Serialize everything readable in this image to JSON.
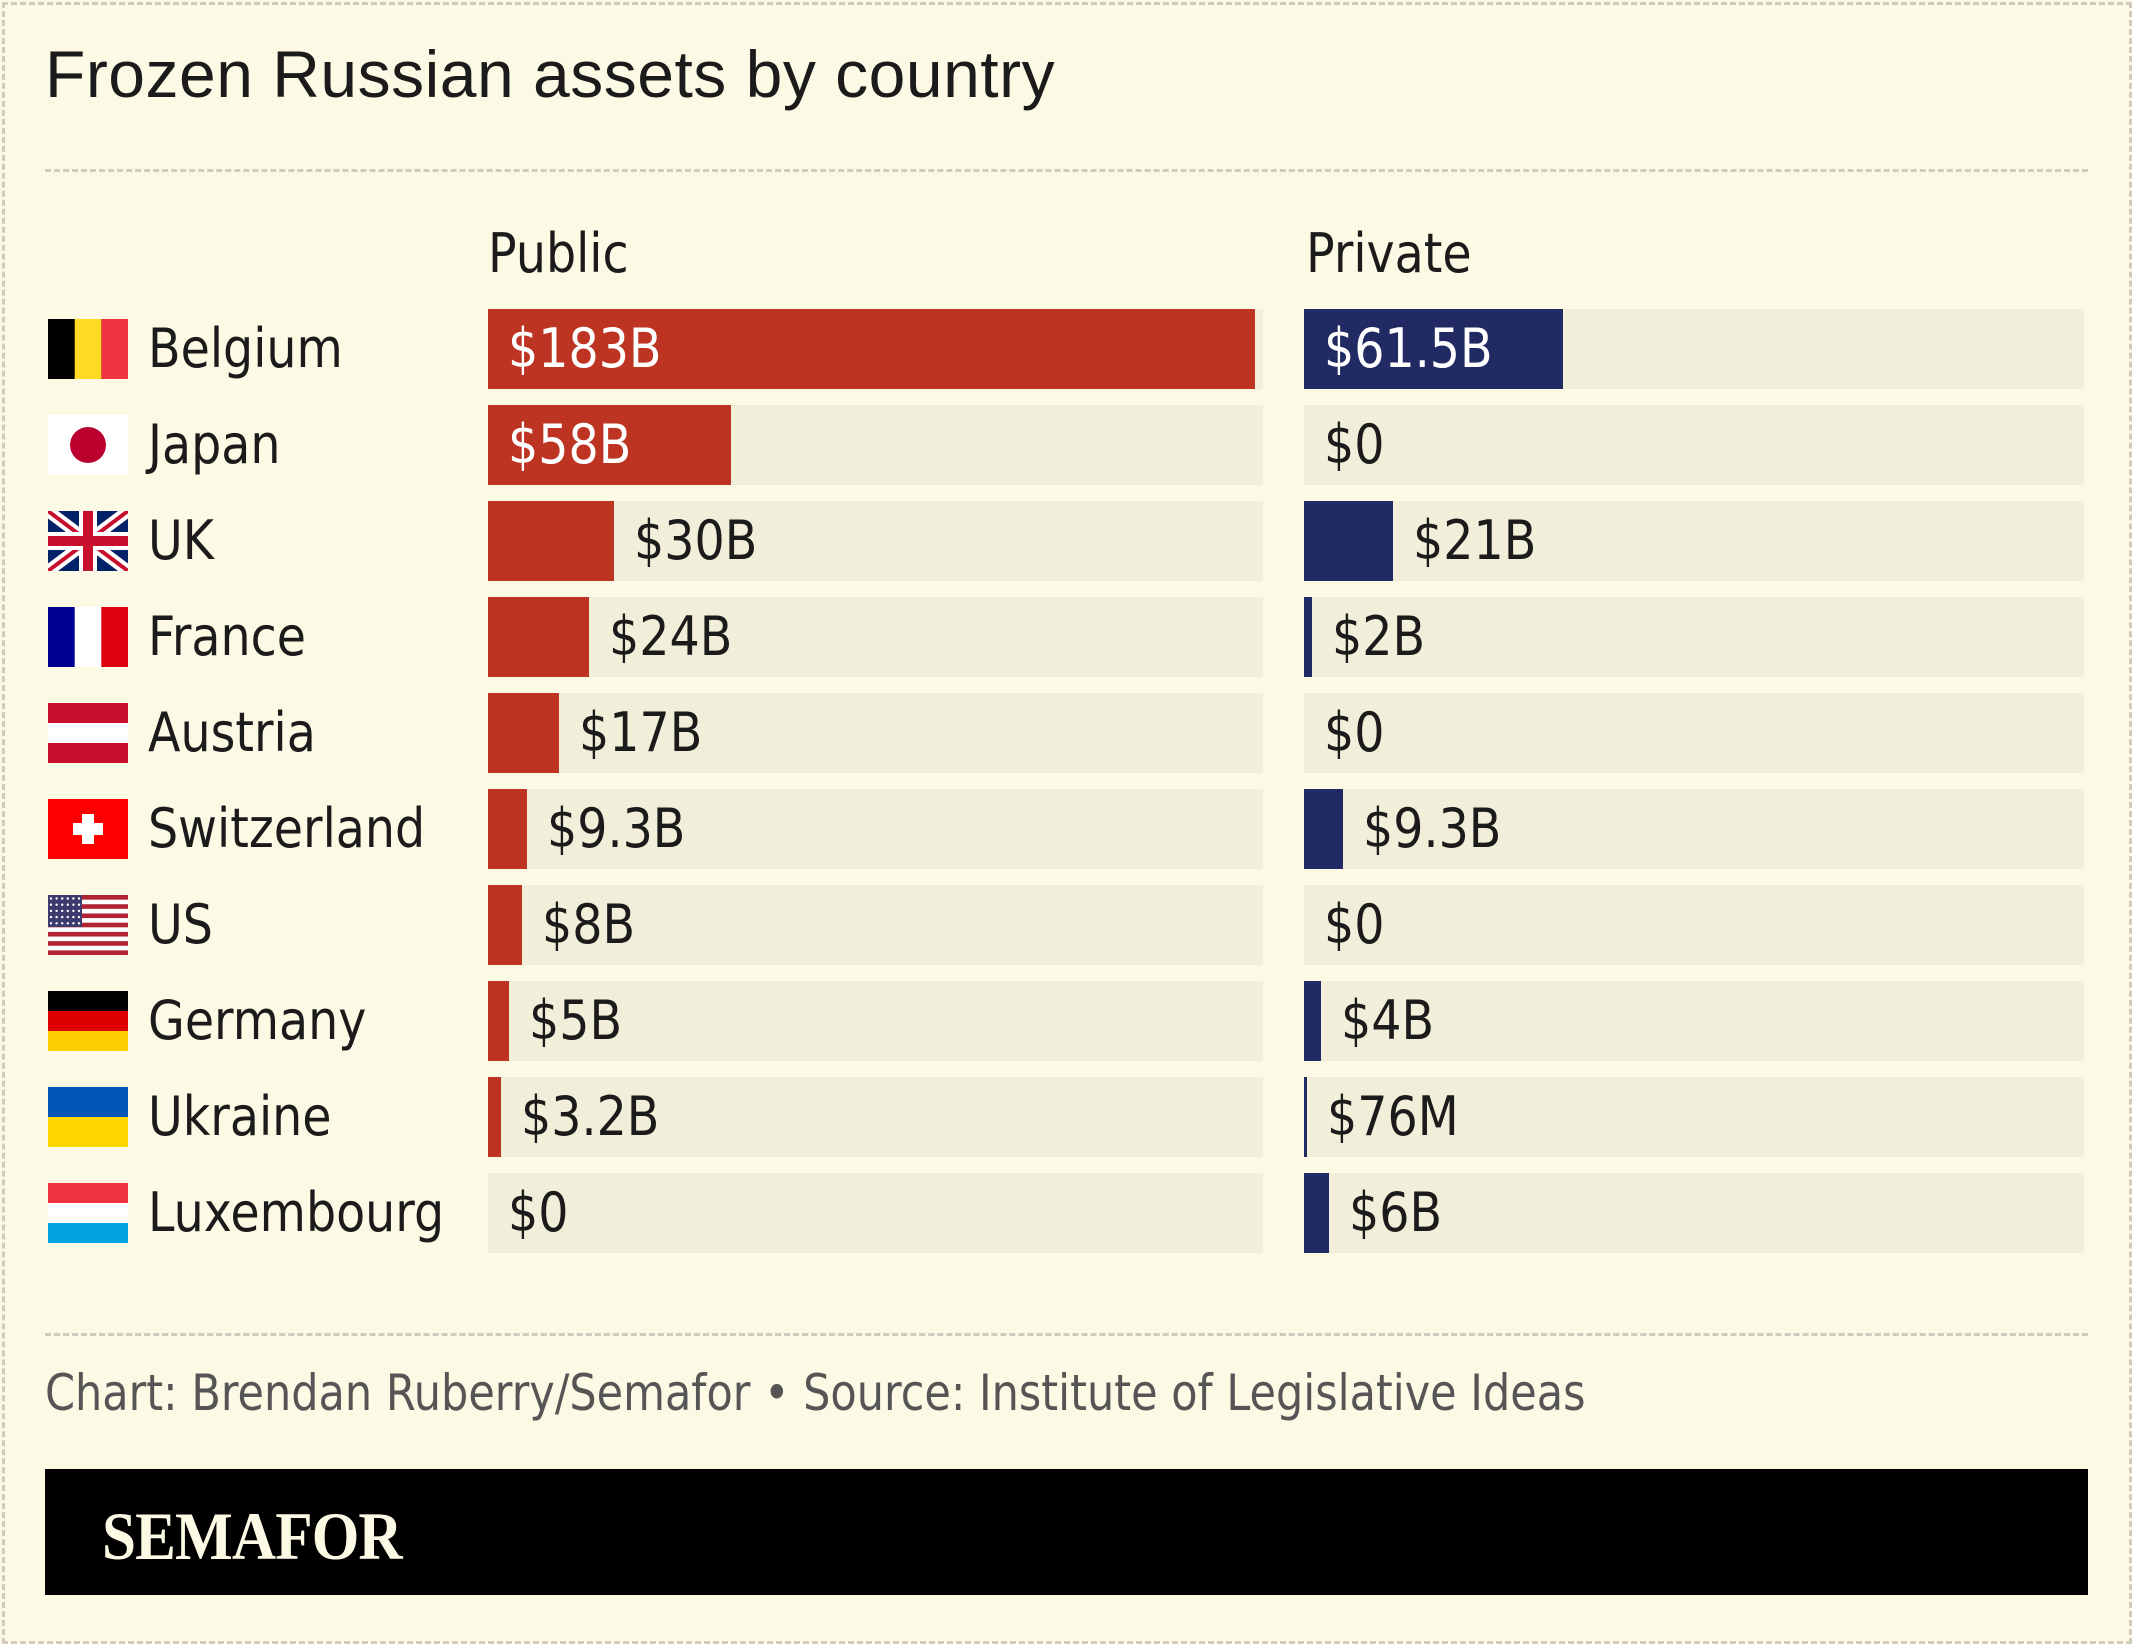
{
  "title": "Frozen Russian assets by country",
  "source": "Chart: Brendan Ruberry/Semafor • Source: Institute of Legislative Ideas",
  "brand": "SEMAFOR",
  "chart_data": {
    "type": "bar",
    "orientation": "horizontal",
    "title": "Frozen Russian assets by country",
    "unit": "USD billions",
    "categories": [
      "Belgium",
      "Japan",
      "UK",
      "France",
      "Austria",
      "Switzerland",
      "US",
      "Germany",
      "Ukraine",
      "Luxembourg"
    ],
    "flags": [
      "belgium-flag",
      "japan-flag",
      "uk-flag",
      "france-flag",
      "austria-flag",
      "switzerland-flag",
      "us-flag",
      "germany-flag",
      "ukraine-flag",
      "luxembourg-flag"
    ],
    "xlim": [
      0,
      185
    ],
    "series": [
      {
        "name": "Public",
        "color": "#bd3422",
        "values": [
          183,
          58,
          30,
          24,
          17,
          9.3,
          8,
          5,
          3.2,
          0
        ],
        "labels": [
          "$183B",
          "$58B",
          "$30B",
          "$24B",
          "$17B",
          "$9.3B",
          "$8B",
          "$5B",
          "$3.2B",
          "$0"
        ]
      },
      {
        "name": "Private",
        "color": "#212a63",
        "values": [
          61.5,
          0,
          21,
          2,
          0,
          9.3,
          0,
          4,
          0.076,
          6
        ],
        "labels": [
          "$61.5B",
          "$0",
          "$21B",
          "$2B",
          "$0",
          "$9.3B",
          "$0",
          "$4B",
          "$76M",
          "$6B"
        ]
      }
    ],
    "track_color": "#f1eed9",
    "grid": false,
    "legend": "none"
  }
}
